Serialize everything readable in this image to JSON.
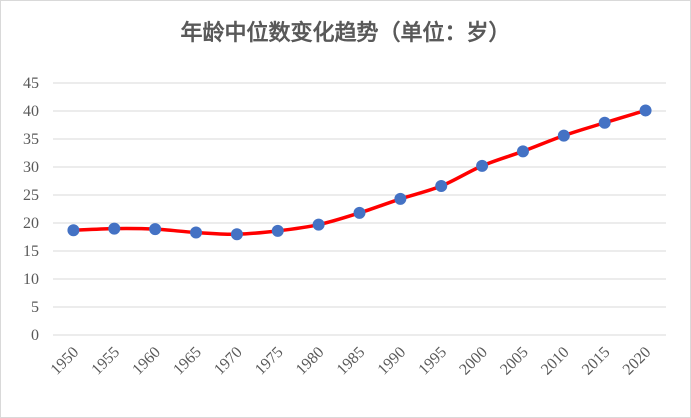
{
  "chart_data": {
    "type": "line",
    "title": "年龄中位数变化趋势（单位：岁）",
    "xlabel": "",
    "ylabel": "",
    "categories": [
      "1950",
      "1955",
      "1960",
      "1965",
      "1970",
      "1975",
      "1980",
      "1985",
      "1990",
      "1995",
      "2000",
      "2005",
      "2010",
      "2015",
      "2020"
    ],
    "series": [
      {
        "values": [
          18.7,
          19.0,
          18.9,
          18.3,
          18.0,
          18.6,
          19.7,
          21.8,
          24.3,
          26.6,
          30.2,
          32.8,
          35.6,
          37.9,
          40.1
        ]
      }
    ],
    "ylim": [
      0,
      45
    ],
    "yticks": [
      0,
      5,
      10,
      15,
      20,
      25,
      30,
      35,
      40,
      45
    ],
    "grid": true,
    "legend": "none",
    "line_color": "#ff0000",
    "marker_color": "#4472c4",
    "grid_color": "#d9d9d9",
    "text_color": "#595959"
  }
}
